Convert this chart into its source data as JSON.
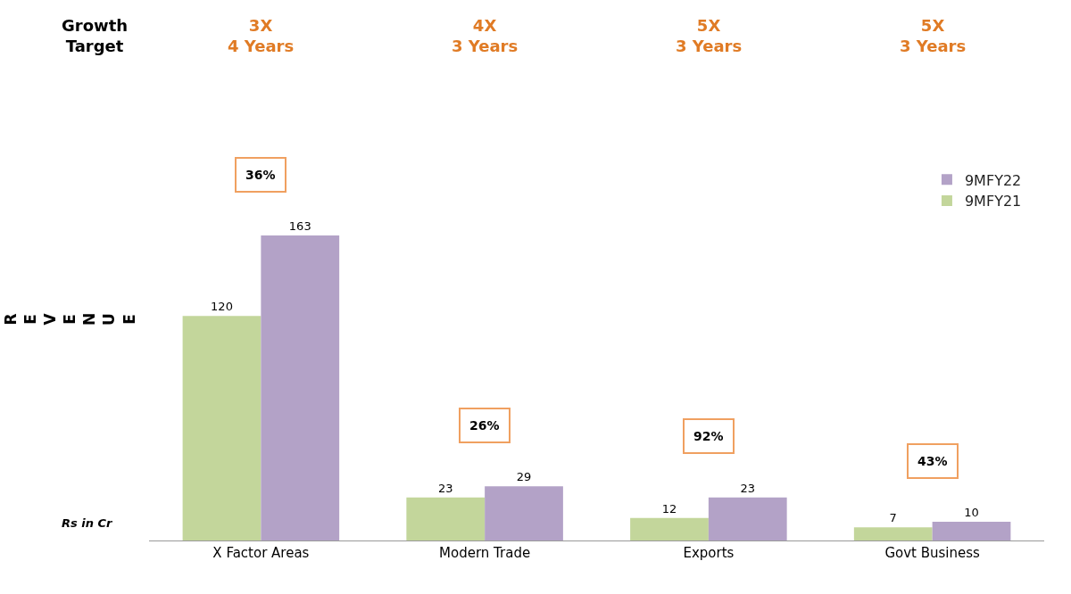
{
  "chart_data": {
    "type": "bar",
    "categories": [
      "X Factor Areas",
      "Modern Trade",
      "Exports",
      "Govt Business"
    ],
    "series": [
      {
        "name": "9MFY21",
        "color": "#c3d69b",
        "values": [
          120,
          23,
          12,
          7
        ]
      },
      {
        "name": "9MFY22",
        "color": "#b3a2c7",
        "values": [
          163,
          29,
          23,
          10
        ]
      }
    ],
    "data_labels": true,
    "ylabel": "REVENUE",
    "legend": "top right",
    "annotations": [
      "Growth\nTarget",
      "3X\n4 Years",
      "4X\n3 Years",
      "5X\n3 Years",
      "5X\n3 Years",
      "36%",
      "26%",
      "92%",
      "43%",
      "Rs in Cr"
    ]
  }
}
